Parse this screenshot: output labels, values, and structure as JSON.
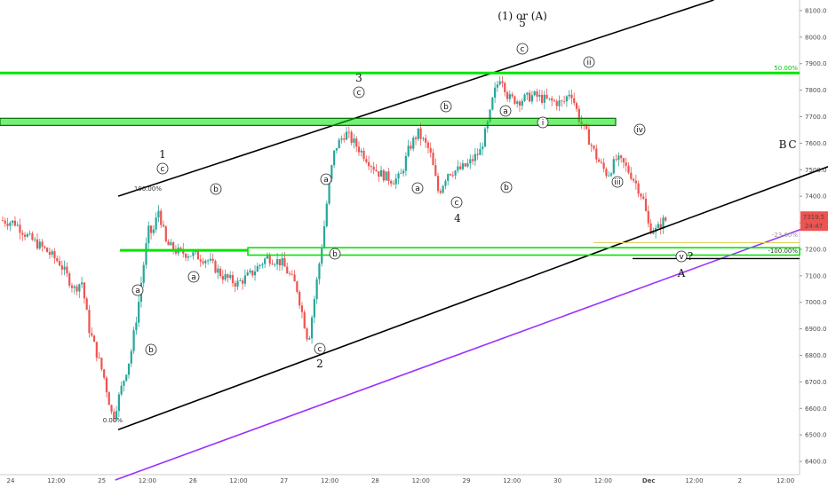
{
  "chart_data": {
    "type": "candlestick",
    "x_tick_labels": [
      "24",
      "12:00",
      "25",
      "12:00",
      "26",
      "12:00",
      "27",
      "12:00",
      "28",
      "12:00",
      "29",
      "12:00",
      "30",
      "12:00",
      "Dec",
      "12:00",
      "2",
      "12:00"
    ],
    "y_ticks": [
      8100,
      8000,
      7900,
      7800,
      7700,
      7600,
      7500,
      7400,
      7300,
      7200,
      7100,
      7000,
      6900,
      6800,
      6700,
      6600,
      6500,
      6400
    ],
    "y_tick_labels": [
      "8100.0",
      "8000.0",
      "7900.0",
      "7800.0",
      "7700.0",
      "7600.0",
      "7500.0",
      "7400.0",
      "7300.0",
      "7200.0",
      "7100.0",
      "7000.0",
      "6900.0",
      "6800.0",
      "6700.0",
      "6600.0",
      "6500.0",
      "6400.0"
    ],
    "ylim": [
      6350,
      8140
    ],
    "last_price": "7319.5",
    "countdown": "24:47",
    "price_path_anchors": [
      [
        0,
        7310
      ],
      [
        1,
        7300
      ],
      [
        2,
        7240
      ],
      [
        3,
        7200
      ],
      [
        4,
        7150
      ],
      [
        5,
        7050
      ],
      [
        5.5,
        7080
      ],
      [
        6,
        6900
      ],
      [
        7,
        6720
      ],
      [
        7.6,
        6560
      ],
      [
        8.2,
        6680
      ],
      [
        8.8,
        6800
      ],
      [
        9.3,
        6980
      ],
      [
        9.6,
        7110
      ],
      [
        10,
        7270
      ],
      [
        10.3,
        7260
      ],
      [
        10.7,
        7350
      ],
      [
        11.2,
        7220
      ],
      [
        12,
        7190
      ],
      [
        13,
        7180
      ],
      [
        14,
        7160
      ],
      [
        15,
        7100
      ],
      [
        16,
        7070
      ],
      [
        17,
        7110
      ],
      [
        18,
        7170
      ],
      [
        19,
        7150
      ],
      [
        20,
        7060
      ],
      [
        20.8,
        6850
      ],
      [
        21.3,
        7050
      ],
      [
        21.8,
        7250
      ],
      [
        22.2,
        7450
      ],
      [
        22.6,
        7580
      ],
      [
        23.3,
        7640
      ],
      [
        24.5,
        7560
      ],
      [
        25.5,
        7490
      ],
      [
        26.5,
        7460
      ],
      [
        27,
        7470
      ],
      [
        27.6,
        7580
      ],
      [
        28.2,
        7640
      ],
      [
        29,
        7570
      ],
      [
        29.6,
        7410
      ],
      [
        30.2,
        7490
      ],
      [
        31,
        7500
      ],
      [
        31.6,
        7520
      ],
      [
        32.4,
        7570
      ],
      [
        33,
        7690
      ],
      [
        33.3,
        7780
      ],
      [
        33.8,
        7860
      ],
      [
        34.3,
        7770
      ],
      [
        35,
        7760
      ],
      [
        36,
        7780
      ],
      [
        37,
        7760
      ],
      [
        38,
        7750
      ],
      [
        38.5,
        7800
      ],
      [
        39.1,
        7690
      ],
      [
        39.7,
        7620
      ],
      [
        40.3,
        7540
      ],
      [
        41,
        7480
      ],
      [
        41.6,
        7540
      ],
      [
        42.1,
        7520
      ],
      [
        42.6,
        7480
      ],
      [
        43,
        7440
      ],
      [
        43.4,
        7390
      ],
      [
        43.8,
        7280
      ],
      [
        44.3,
        7270
      ],
      [
        44.8,
        7310
      ]
    ],
    "horizontal_levels": [
      {
        "price": 7865,
        "color": "#00e600",
        "from_x_frac": 0.0,
        "to_x_frac": 1.0
      },
      {
        "price_band": [
          7667,
          7694
        ],
        "color": "#00e600",
        "from_x_frac": 0.0,
        "to_x_frac": 0.77
      },
      {
        "price": 7196,
        "color": "#00e600",
        "from_x_frac": 0.15,
        "to_x_frac": 0.31
      },
      {
        "price_band": [
          7178,
          7206
        ],
        "color": "#00e600",
        "from_x_frac": 0.31,
        "to_x_frac": 1.0
      }
    ],
    "trend_lines": [
      {
        "name": "channel-top",
        "color": "#000000",
        "p1": [
          7.8,
          7400
        ],
        "p2": [
          48,
          8140
        ]
      },
      {
        "name": "channel-bottom",
        "color": "#000000",
        "p1": [
          7.8,
          6520
        ],
        "p2": [
          60,
          7600
        ]
      },
      {
        "name": "purple-support",
        "color": "#9b30ff",
        "p1": [
          7.6,
          6330
        ],
        "p2": [
          60,
          7400
        ]
      }
    ],
    "annotations": {
      "fib_levels": [
        "100.00%",
        "0.00%",
        "-23.60%",
        "-100.00%",
        "50.00%"
      ],
      "wave_labels": [
        "1",
        "3",
        "5",
        "(1) or (A)",
        "2",
        "4",
        "B",
        "C",
        "A",
        "?"
      ],
      "circled_labels": [
        "a",
        "b",
        "c",
        "i",
        "ii",
        "iii",
        "iv",
        "v"
      ]
    },
    "colors": {
      "up": "#26a69a",
      "down": "#ef5350",
      "last_price_bg": "#ef5350",
      "green_level": "#00e600",
      "channel": "#000000",
      "purple": "#9b30ff",
      "fib_yellow": "#e0d060"
    }
  }
}
